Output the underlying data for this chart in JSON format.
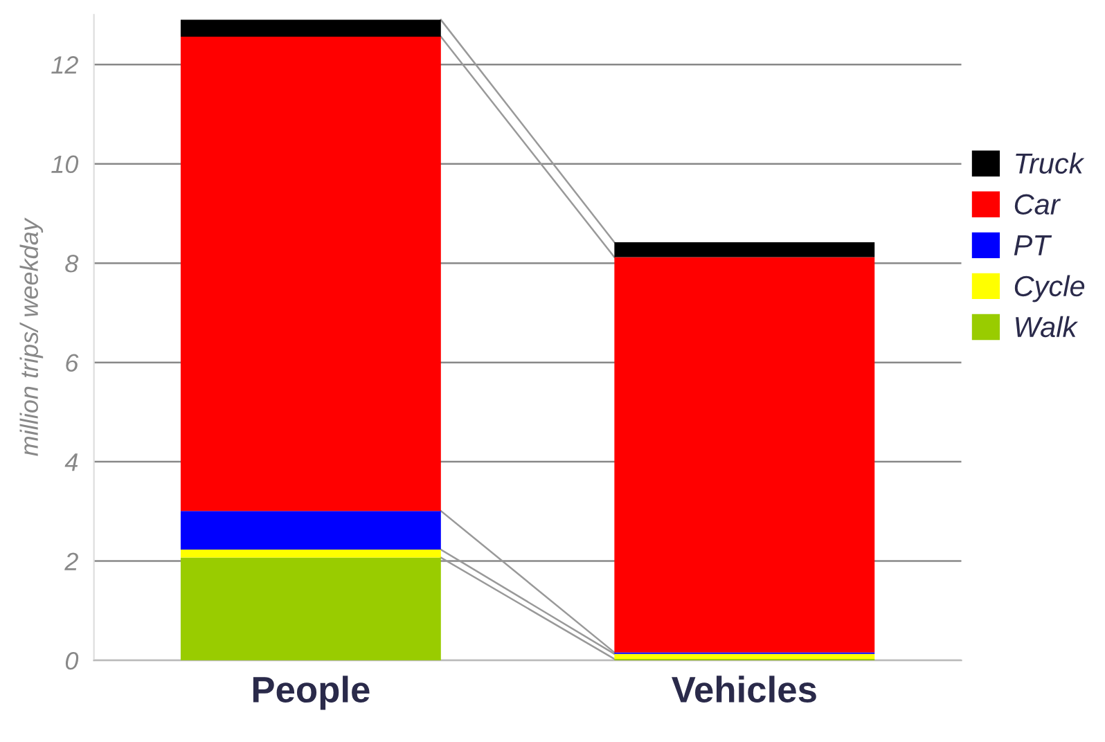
{
  "chart_data": {
    "type": "bar",
    "stacked": true,
    "ylabel": "million trips/ weekday",
    "categories": [
      "People",
      "Vehicles"
    ],
    "series": [
      {
        "name": "Walk",
        "color": "#99cc00",
        "values": [
          2.07,
          0.03
        ]
      },
      {
        "name": "Cycle",
        "color": "#ffff00",
        "values": [
          0.16,
          0.1
        ]
      },
      {
        "name": "PT",
        "color": "#0000ff",
        "values": [
          0.78,
          0.03
        ]
      },
      {
        "name": "Car",
        "color": "#ff0000",
        "values": [
          9.55,
          7.96
        ]
      },
      {
        "name": "Truck",
        "color": "#000000",
        "values": [
          0.34,
          0.3
        ]
      }
    ],
    "ylim": [
      0,
      13
    ],
    "yticks": [
      0,
      2,
      4,
      6,
      8,
      10,
      12
    ],
    "grid": "y",
    "legend": "right"
  }
}
